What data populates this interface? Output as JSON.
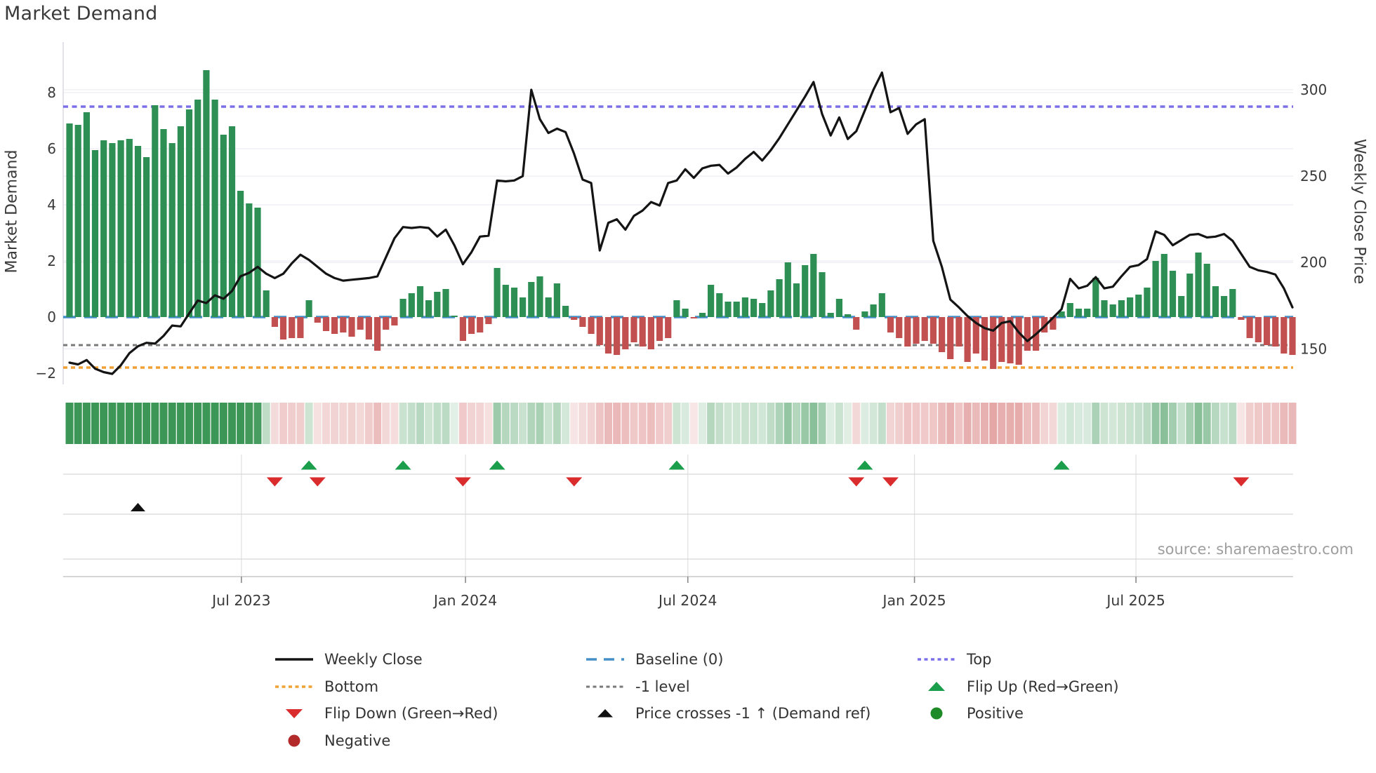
{
  "title": "Market Demand",
  "source": "source: sharemaestro.com",
  "axes": {
    "left": {
      "title": "Market Demand",
      "ticks": [
        8,
        6,
        4,
        2,
        0,
        -2
      ]
    },
    "right": {
      "title": "Weekly Close Price",
      "ticks": [
        300,
        250,
        200,
        150
      ]
    },
    "x": {
      "labels": [
        "Jul 2023",
        "Jan 2024",
        "Jul 2024",
        "Jan 2025",
        "Jul 2025"
      ],
      "tick_weeks": [
        20.1,
        46.3,
        72.3,
        98.8,
        124.7
      ]
    }
  },
  "colors": {
    "bar_positive": "#2e8f55",
    "bar_negative": "#c35050",
    "price_line": "#141414",
    "baseline": "#4690c9",
    "top_line": "#7b70e8",
    "bottom_line": "#f0a135",
    "minus_one_line": "#7a7a7a",
    "flip_up": "#1b9e4b",
    "flip_down": "#da2c2c",
    "price_cross": "#111111",
    "positive_dot": "#1e8b28",
    "negative_dot": "#b22a2a",
    "heat_green": "60,150,85",
    "heat_red": "205,85,85",
    "grid": "#ededf3",
    "marker_grid": "#d6d6d6",
    "axis_line": "#c9c9c9",
    "tick_text": "#3a3a3a"
  },
  "legend": {
    "items": [
      {
        "label": "Weekly Close",
        "swatch": "line-black"
      },
      {
        "label": "Baseline (0)",
        "swatch": "dash-blue"
      },
      {
        "label": "Top",
        "swatch": "dot-purple"
      },
      {
        "label": "Bottom",
        "swatch": "dot-orange"
      },
      {
        "label": "-1 level",
        "swatch": "dot-gray"
      },
      {
        "label": "Flip Up (Red→Green)",
        "swatch": "triangle-up-green"
      },
      {
        "label": "Flip Down (Green→Red)",
        "swatch": "triangle-down-red"
      },
      {
        "label": "Price crosses -1 ↑ (Demand ref)",
        "swatch": "triangle-up-black"
      },
      {
        "label": "Positive",
        "swatch": "circle-green"
      },
      {
        "label": "Negative",
        "swatch": "circle-red"
      }
    ]
  },
  "chart_data": {
    "type": "mixed",
    "subcharts": [
      "bar",
      "line",
      "heatmap",
      "event-markers"
    ],
    "weeks": 144,
    "period": "weekly, Feb 2023 - Nov 2025",
    "ylim_demand": [
      -2.4,
      9.8
    ],
    "ylim_price": [
      136,
      334
    ],
    "reference_lines": {
      "baseline": 0,
      "top": 7.5,
      "bottom": -1.8,
      "minus_one": -1
    },
    "demand": [
      6.9,
      6.85,
      7.3,
      5.95,
      6.3,
      6.2,
      6.3,
      6.35,
      6.1,
      5.7,
      7.55,
      6.7,
      6.2,
      6.8,
      7.4,
      7.75,
      8.8,
      7.75,
      6.5,
      6.8,
      4.5,
      4.05,
      3.9,
      0.95,
      -0.35,
      -0.8,
      -0.75,
      -0.75,
      0.6,
      -0.2,
      -0.5,
      -0.6,
      -0.55,
      -0.7,
      -0.45,
      -0.8,
      -1.2,
      -0.45,
      -0.3,
      0.65,
      0.85,
      1.1,
      0.6,
      0.9,
      1.0,
      0.05,
      -0.85,
      -0.6,
      -0.55,
      -0.25,
      1.75,
      1.15,
      1.05,
      0.7,
      1.25,
      1.45,
      0.7,
      1.2,
      0.4,
      -0.1,
      -0.35,
      -0.6,
      -1.0,
      -1.3,
      -1.35,
      -1.15,
      -0.9,
      -1.05,
      -1.15,
      -0.85,
      -0.75,
      0.6,
      0.3,
      -0.05,
      0.15,
      1.15,
      0.85,
      0.55,
      0.55,
      0.7,
      0.65,
      0.5,
      0.95,
      1.35,
      1.95,
      1.2,
      1.85,
      2.25,
      1.6,
      0.15,
      0.65,
      0.1,
      -0.45,
      0.2,
      0.45,
      0.85,
      -0.55,
      -0.75,
      -1.05,
      -0.95,
      -0.85,
      -0.95,
      -1.25,
      -1.5,
      -1.05,
      -1.6,
      -1.3,
      -1.55,
      -1.85,
      -1.6,
      -1.65,
      -1.7,
      -1.2,
      -1.2,
      -0.55,
      -0.45,
      0.2,
      0.5,
      0.3,
      0.3,
      1.4,
      0.6,
      0.45,
      0.6,
      0.7,
      0.8,
      1.05,
      2.0,
      2.25,
      1.65,
      0.75,
      1.55,
      2.3,
      1.9,
      1.1,
      0.75,
      1.0,
      -0.1,
      -0.75,
      -0.9,
      -1.0,
      -1.05,
      -1.3,
      -1.35
    ],
    "price": [
      142,
      141,
      143.5,
      138.5,
      136.5,
      135.5,
      140.5,
      147.5,
      151.5,
      153.5,
      153,
      157.5,
      163.5,
      163,
      170.5,
      178,
      176.5,
      181,
      179,
      183.5,
      192,
      194,
      197.5,
      193.5,
      191,
      193.5,
      199.5,
      204.5,
      201.5,
      197.5,
      193.5,
      191,
      189.5,
      190,
      190.5,
      191,
      192,
      203,
      214,
      220.5,
      220,
      220.5,
      220,
      215,
      219,
      210,
      199,
      206,
      215,
      215.5,
      247.5,
      247,
      247.5,
      250,
      300,
      283,
      275,
      277.5,
      275.5,
      263,
      248,
      246,
      207,
      223,
      225,
      219,
      227,
      230,
      235,
      233,
      246,
      247.5,
      254,
      249,
      254.5,
      256,
      256.5,
      251.5,
      255,
      260,
      264,
      259,
      265,
      272,
      280,
      288,
      296,
      304.5,
      286,
      273.5,
      284,
      271.5,
      276,
      288,
      300,
      310,
      287,
      289.5,
      274.5,
      280,
      283,
      212.5,
      197.5,
      178.5,
      174,
      169,
      165,
      162,
      160.5,
      165,
      166,
      159.5,
      154.5,
      158.5,
      163,
      168,
      173,
      190.5,
      185,
      186.5,
      191.5,
      185,
      186,
      192,
      197.5,
      198.5,
      202,
      218,
      216,
      210,
      213,
      216,
      216.5,
      214.5,
      215,
      216.5,
      212.5,
      205,
      197.5,
      195.5,
      194.5,
      193,
      185,
      174
    ],
    "markers": {
      "flip_up_weeks": [
        28,
        39,
        50,
        71,
        93,
        116
      ],
      "flip_down_weeks": [
        24,
        29,
        46,
        59,
        92,
        96,
        137
      ],
      "price_cross_weeks": [
        8
      ]
    }
  }
}
